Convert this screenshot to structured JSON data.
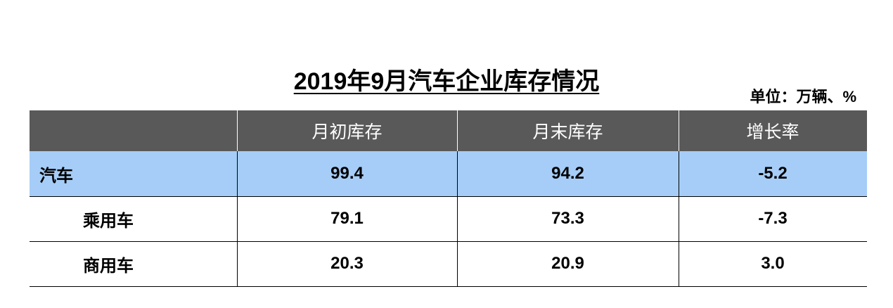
{
  "header": {
    "title": "2019年9月汽车企业库存情况",
    "unit": "单位：万辆、%"
  },
  "table": {
    "columns": [
      "月初库存",
      "月末库存",
      "增长率"
    ],
    "rows": [
      [
        "汽车",
        "99.4",
        "94.2",
        "-5.2"
      ],
      [
        "乘用车",
        "79.1",
        "73.3",
        "-7.3"
      ],
      [
        "商用车",
        "20.3",
        "20.9",
        "3.0"
      ]
    ]
  }
}
